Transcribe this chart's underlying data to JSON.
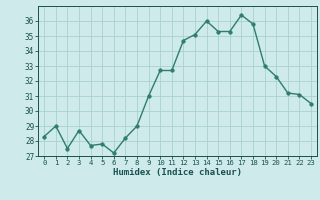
{
  "x": [
    0,
    1,
    2,
    3,
    4,
    5,
    6,
    7,
    8,
    9,
    10,
    11,
    12,
    13,
    14,
    15,
    16,
    17,
    18,
    19,
    20,
    21,
    22,
    23
  ],
  "y": [
    28.3,
    29.0,
    27.5,
    28.7,
    27.7,
    27.8,
    27.2,
    28.2,
    29.0,
    31.0,
    32.7,
    32.7,
    34.7,
    35.1,
    36.0,
    35.3,
    35.3,
    36.4,
    35.8,
    33.0,
    32.3,
    31.2,
    31.1,
    30.5
  ],
  "line_color": "#2e7d6e",
  "marker_color": "#2e7d6e",
  "bg_color": "#ceeaea",
  "grid_color": "#a8d0d0",
  "tick_color": "#1a5050",
  "xlabel": "Humidex (Indice chaleur)",
  "ylim": [
    27,
    37
  ],
  "yticks": [
    27,
    28,
    29,
    30,
    31,
    32,
    33,
    34,
    35,
    36
  ],
  "marker_size": 2.5,
  "line_width": 1.0
}
